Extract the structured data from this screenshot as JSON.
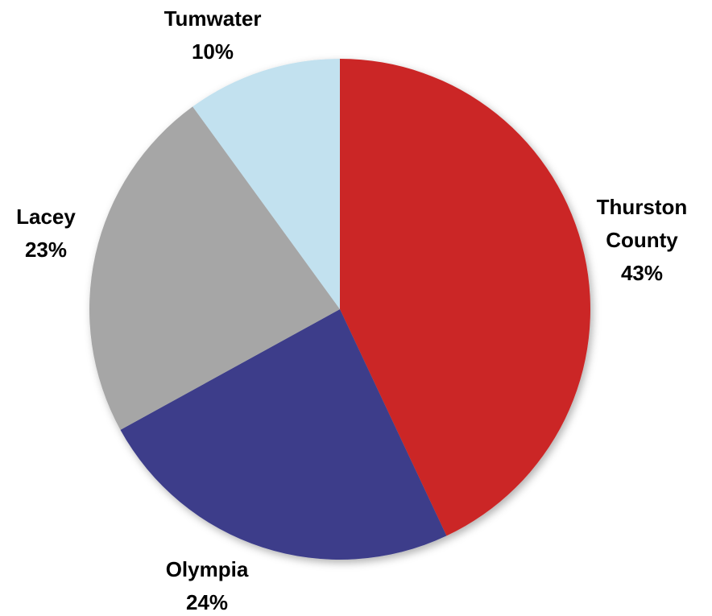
{
  "chart_data": {
    "type": "pie",
    "title": "",
    "categories": [
      "Thurston County",
      "Olympia",
      "Lacey",
      "Tumwater"
    ],
    "values": [
      43,
      24,
      23,
      10
    ],
    "unit": "%",
    "start_angle_deg": 0,
    "direction": "clockwise",
    "legend": "none",
    "labels": [
      {
        "lines": [
          "Thurston",
          "County"
        ],
        "pct": "43%"
      },
      {
        "lines": [
          "Olympia"
        ],
        "pct": "24%"
      },
      {
        "lines": [
          "Lacey"
        ],
        "pct": "23%"
      },
      {
        "lines": [
          "Tumwater"
        ],
        "pct": "10%"
      }
    ],
    "colors": [
      "#cb2727",
      "#3c3e8a",
      "#a6a6a6",
      "#c2e1ef"
    ]
  }
}
